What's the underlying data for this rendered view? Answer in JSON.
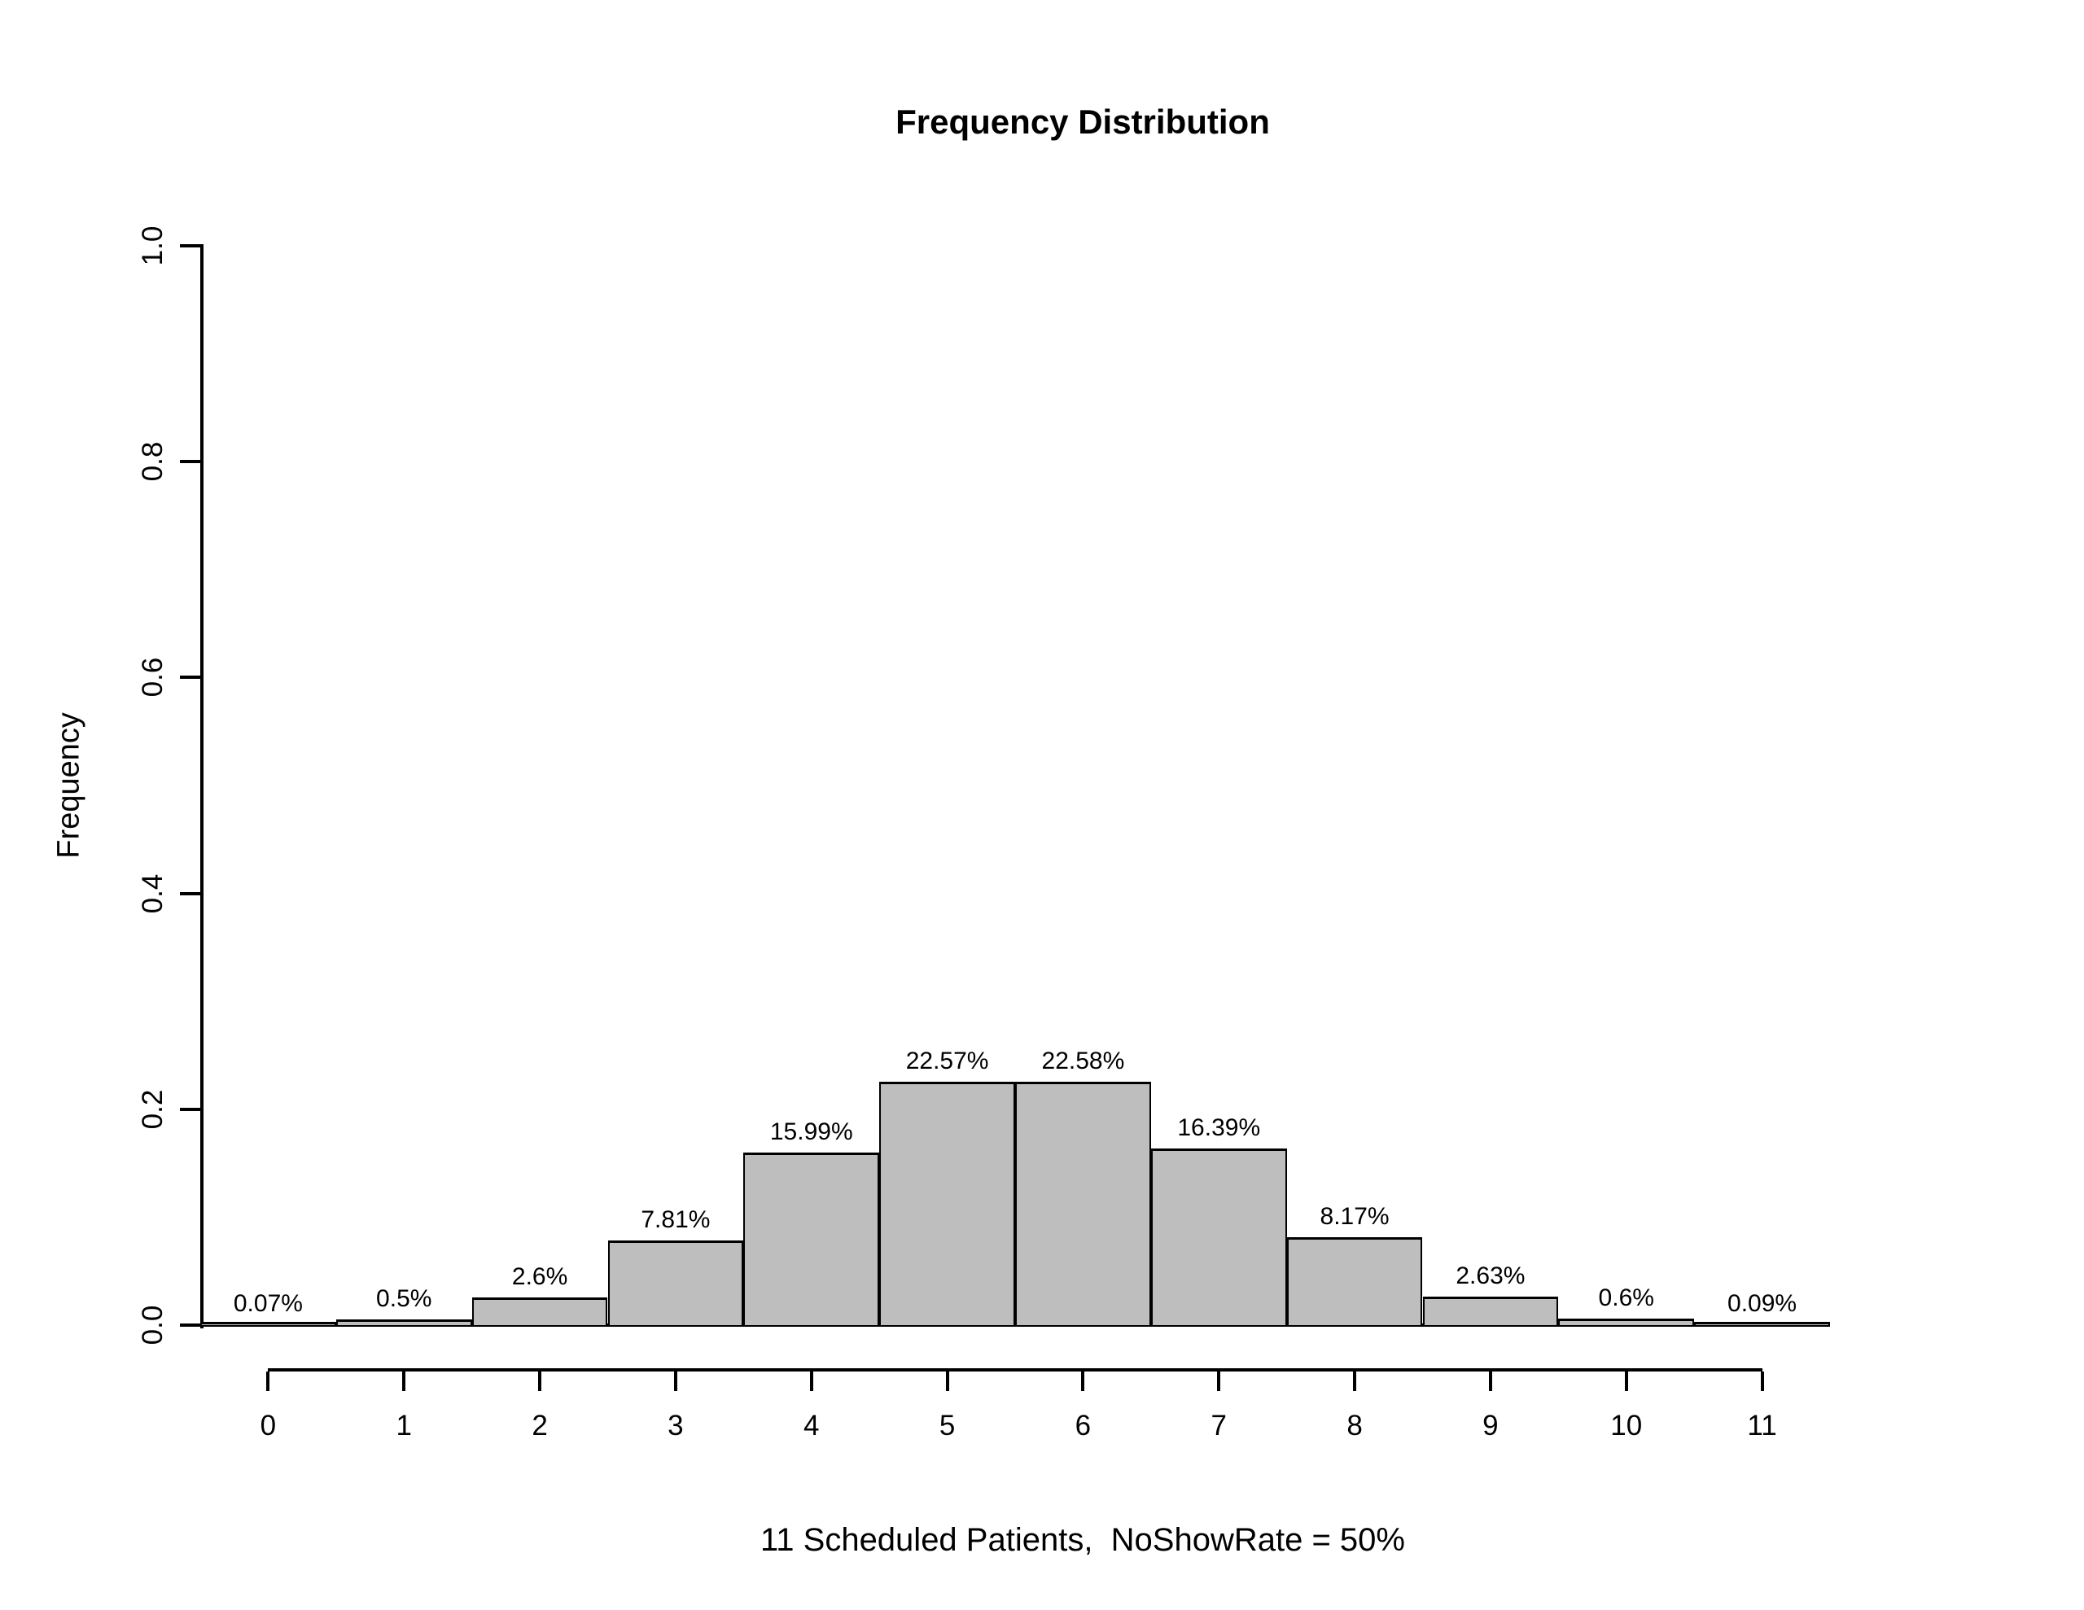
{
  "page": {
    "background": "#ffffff",
    "text_color": "#000000"
  },
  "chart_data": {
    "type": "bar",
    "title": "Frequency Distribution",
    "xlabel": "11 Scheduled Patients,  NoShowRate = 50%",
    "ylabel": "Frequency",
    "categories": [
      "0",
      "1",
      "2",
      "3",
      "4",
      "5",
      "6",
      "7",
      "8",
      "9",
      "10",
      "11"
    ],
    "values": [
      0.0007,
      0.005,
      0.026,
      0.0781,
      0.1599,
      0.2257,
      0.2258,
      0.1639,
      0.0817,
      0.0263,
      0.006,
      0.0009
    ],
    "bar_labels": [
      "0.07%",
      "0.5%",
      "2.6%",
      "7.81%",
      "15.99%",
      "22.57%",
      "22.58%",
      "16.39%",
      "8.17%",
      "2.63%",
      "0.6%",
      "0.09%"
    ],
    "ylim": [
      0.0,
      1.0
    ],
    "yticks": [
      0.0,
      0.2,
      0.4,
      0.6,
      0.8,
      1.0
    ],
    "ytick_labels": [
      "0.0",
      "0.2",
      "0.4",
      "0.6",
      "0.8",
      "1.0"
    ],
    "grid": "off",
    "legend": "none",
    "bar_fill": "#bebebe",
    "bar_border": "#000000",
    "axis_color": "#000000"
  }
}
